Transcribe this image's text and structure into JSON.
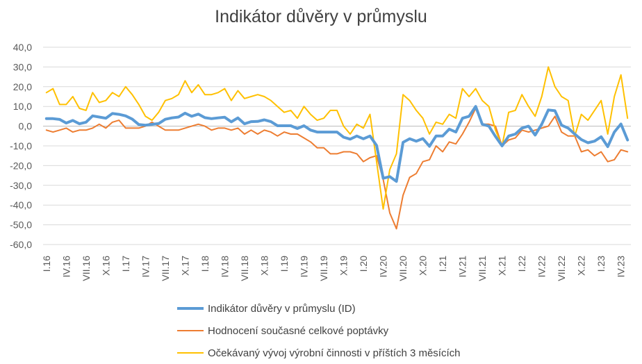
{
  "colors": {
    "series": [
      "#5B9BD5",
      "#ED7D31",
      "#FFC000"
    ],
    "grid": "#D9D9D9",
    "axis": "#BFBFBF"
  },
  "chart_data": {
    "type": "line",
    "title": "Indikátor důvěry v průmyslu",
    "xlabel": "",
    "ylabel": "",
    "ylim": [
      -60,
      40
    ],
    "y_ticks": [
      "40,0",
      "30,0",
      "20,0",
      "10,0",
      "0,0",
      "-10,0",
      "-20,0",
      "-30,0",
      "-40,0",
      "-50,0",
      "-60,0"
    ],
    "grid": true,
    "legend_position": "bottom",
    "x_tick_labels": [
      "I.16",
      "IV.16",
      "VII.16",
      "X.16",
      "I.17",
      "IV.17",
      "VII.17",
      "X.17",
      "I.18",
      "IV.18",
      "VII.18",
      "X.18",
      "I.19",
      "IV.19",
      "VII.19",
      "X.19",
      "I.20",
      "IV.20",
      "VII.20",
      "X.20",
      "I.21",
      "IV.21",
      "VII.21",
      "X.21",
      "I.22",
      "IV.22",
      "VII.22",
      "X.22",
      "I.23",
      "IV.23"
    ],
    "series": [
      {
        "name": "Indikátor důvěry v průmyslu (ID)",
        "width": 4,
        "values": [
          3.8,
          3.8,
          3.4,
          1.6,
          2.9,
          1.2,
          2.0,
          5.2,
          4.6,
          4.0,
          6.4,
          6.0,
          5.2,
          3.6,
          0.8,
          0.5,
          0.9,
          1.3,
          3.5,
          4.2,
          4.6,
          6.6,
          5.0,
          6.1,
          4.3,
          3.8,
          4.2,
          4.5,
          2.2,
          4.2,
          1.2,
          2.3,
          2.4,
          3.2,
          2.3,
          0.2,
          0.2,
          0.2,
          -1.2,
          0.2,
          -2.0,
          -3.0,
          -3.0,
          -3.0,
          -3.0,
          -5.6,
          -6.6,
          -5.0,
          -6.4,
          -5.0,
          -9.8,
          -26.4,
          -25.6,
          -28.0,
          -8.2,
          -6.4,
          -7.6,
          -6.3,
          -10.2,
          -5.0,
          -5.0,
          -1.5,
          -3.0,
          4.0,
          5.0,
          10.0,
          1.0,
          0.0,
          -5.2,
          -10.0,
          -5.0,
          -4.0,
          -1.0,
          0.0,
          -4.5,
          1.0,
          8.2,
          7.8,
          0.5,
          -1.0,
          -4.0,
          -6.8,
          -8.4,
          -7.6,
          -5.4,
          -10.4,
          -3.0,
          1.1,
          -7.0
        ]
      },
      {
        "name": "Hodnocení současné celkové poptávky",
        "width": 2,
        "values": [
          -2.0,
          -3.0,
          -2.0,
          -1.0,
          -3.0,
          -2.0,
          -2.0,
          -1.0,
          1.0,
          -1.0,
          2.0,
          3.0,
          -1.0,
          -1.0,
          -1.0,
          0.0,
          2.0,
          0.0,
          -2.0,
          -2.0,
          -2.0,
          -1.0,
          0.0,
          1.0,
          0.0,
          -2.0,
          -1.0,
          -1.0,
          -2.0,
          -1.0,
          -4.0,
          -2.0,
          -4.0,
          -2.0,
          -3.0,
          -5.0,
          -3.0,
          -4.0,
          -4.0,
          -6.0,
          -8.0,
          -11.0,
          -11.0,
          -14.0,
          -14.0,
          -13.0,
          -13.0,
          -14.0,
          -18.0,
          -16.0,
          -15.0,
          -27.0,
          -44.0,
          -52.0,
          -35.0,
          -26.0,
          -24.0,
          -18.0,
          -17.0,
          -10.0,
          -13.0,
          -8.0,
          -9.0,
          -4.0,
          2.0,
          9.0,
          1.0,
          1.0,
          0.0,
          -10.0,
          -7.0,
          -6.0,
          -2.0,
          -3.0,
          -2.0,
          -1.0,
          0.0,
          5.0,
          -3.0,
          -5.0,
          -5.0,
          -13.0,
          -12.0,
          -15.0,
          -13.0,
          -18.0,
          -17.0,
          -12.0,
          -13.0
        ]
      },
      {
        "name": "Očekávaný vývoj výrobní činnosti v příštích 3 měsících",
        "width": 2,
        "values": [
          17.0,
          19.0,
          11.0,
          11.0,
          15.0,
          9.0,
          8.0,
          17.0,
          12.0,
          13.0,
          17.0,
          15.0,
          20.0,
          16.0,
          11.0,
          5.0,
          3.0,
          7.0,
          13.0,
          14.0,
          16.0,
          23.0,
          17.0,
          21.0,
          16.0,
          16.0,
          17.0,
          19.0,
          13.0,
          18.0,
          14.0,
          15.0,
          16.0,
          15.0,
          13.0,
          10.0,
          7.0,
          8.0,
          4.0,
          10.0,
          6.0,
          3.0,
          4.0,
          8.0,
          8.0,
          0.0,
          -4.0,
          1.0,
          -1.0,
          6.0,
          -18.0,
          -42.0,
          -22.0,
          -14.0,
          16.0,
          13.0,
          8.0,
          4.0,
          -4.0,
          2.0,
          1.0,
          6.0,
          4.0,
          19.0,
          15.0,
          19.0,
          13.0,
          10.0,
          -2.0,
          -10.0,
          7.0,
          8.0,
          16.0,
          10.0,
          5.0,
          15.0,
          30.0,
          20.0,
          15.0,
          13.0,
          -5.0,
          6.0,
          3.0,
          8.0,
          13.0,
          -4.0,
          15.0,
          26.0,
          4.0
        ]
      }
    ]
  },
  "legend": {
    "items": [
      "Indikátor důvěry v průmyslu (ID)",
      "Hodnocení současné celkové poptávky",
      "Očekávaný vývoj výrobní činnosti v příštích 3 měsících"
    ]
  }
}
